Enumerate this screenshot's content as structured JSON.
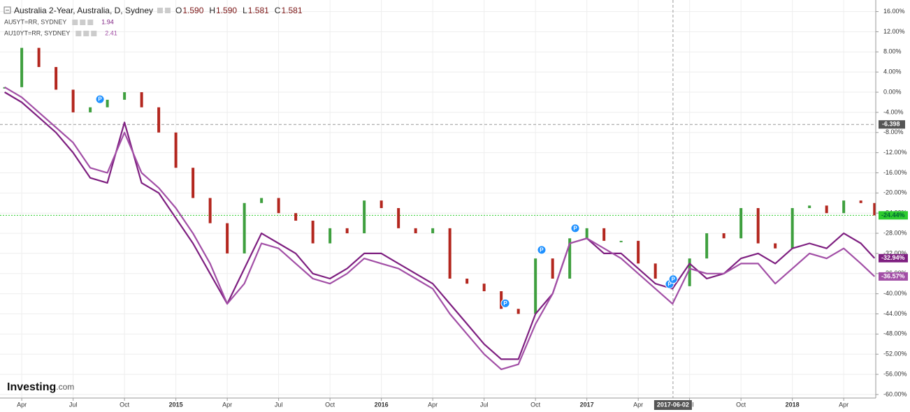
{
  "header": {
    "title": "Australia 2-Year, Australia, D, Sydney",
    "ohlc": [
      {
        "key": "O",
        "value": "1.590"
      },
      {
        "key": "H",
        "value": "1.590"
      },
      {
        "key": "L",
        "value": "1.581"
      },
      {
        "key": "C",
        "value": "1.581"
      }
    ]
  },
  "logo": {
    "main": "Investing",
    "suffix": ".com"
  },
  "chart_data": {
    "type": "candle-compare",
    "x": [
      2,
      3,
      4,
      5,
      6,
      7,
      8,
      9,
      10,
      11,
      12,
      13,
      14,
      15,
      16,
      17,
      18,
      19,
      20,
      21,
      22,
      23,
      24,
      25,
      26,
      27,
      28,
      29,
      30,
      31,
      32,
      33,
      34,
      35,
      36,
      37,
      38,
      39,
      40,
      41,
      42,
      43,
      44,
      45,
      46,
      47,
      48,
      49,
      50,
      51,
      52,
      52.8
    ],
    "xlim": [
      1.73,
      52.87
    ],
    "xticks": [
      {
        "value": 3,
        "label": "Apr"
      },
      {
        "value": 6,
        "label": "Jul"
      },
      {
        "value": 9,
        "label": "Oct"
      },
      {
        "value": 12,
        "label": "2015"
      },
      {
        "value": 15,
        "label": "Apr"
      },
      {
        "value": 18,
        "label": "Jul"
      },
      {
        "value": 21,
        "label": "Oct"
      },
      {
        "value": 24,
        "label": "2016"
      },
      {
        "value": 27,
        "label": "Apr"
      },
      {
        "value": 30,
        "label": "Jul"
      },
      {
        "value": 33,
        "label": "Oct"
      },
      {
        "value": 36,
        "label": "2017"
      },
      {
        "value": 39,
        "label": "Apr"
      },
      {
        "value": 42,
        "label": "Jul"
      },
      {
        "value": 45,
        "label": "Oct"
      },
      {
        "value": 48,
        "label": "2018"
      },
      {
        "value": 51,
        "label": "Apr"
      }
    ],
    "ylim": [
      -60.7,
      18.3
    ],
    "yticks": [
      {
        "value": 16,
        "label": "16.00%"
      },
      {
        "value": 12,
        "label": "12.00%"
      },
      {
        "value": 8,
        "label": "8.00%"
      },
      {
        "value": 4,
        "label": "4.00%"
      },
      {
        "value": 0,
        "label": "0.00%"
      },
      {
        "value": -4,
        "label": "-4.00%"
      },
      {
        "value": -8,
        "label": "-8.00%"
      },
      {
        "value": -12,
        "label": "-12.00%"
      },
      {
        "value": -16,
        "label": "-16.00%"
      },
      {
        "value": -20,
        "label": "-20.00%"
      },
      {
        "value": -24,
        "label": "-24.00%"
      },
      {
        "value": -28,
        "label": "-28.00%"
      },
      {
        "value": -32,
        "label": "-32.00%"
      },
      {
        "value": -36,
        "label": "-36.00%"
      },
      {
        "value": -40,
        "label": "-40.00%"
      },
      {
        "value": -44,
        "label": "-44.00%"
      },
      {
        "value": -48,
        "label": "-48.00%"
      },
      {
        "value": -52,
        "label": "-52.00%"
      },
      {
        "value": -56,
        "label": "-56.00%"
      },
      {
        "value": -60,
        "label": "-60.00%"
      }
    ],
    "grid": true,
    "series": [
      {
        "name": "Australia 2-Year",
        "style": "candle",
        "up_color": "#3e9f3e",
        "down_color": "#b3261e",
        "color": "#2ecc2e",
        "last_label": "-24.44%",
        "values": [
          1.0,
          8.8,
          5.0,
          0.5,
          -4.0,
          -3.0,
          -1.5,
          0.0,
          -3.0,
          -8.0,
          -15.0,
          -21.0,
          -26.0,
          -32.0,
          -22.0,
          -21.0,
          -24.0,
          -25.5,
          -30.0,
          -27.0,
          -28.0,
          -21.5,
          -23.0,
          -27.0,
          -28.0,
          -27.0,
          -37.0,
          -38.0,
          -39.5,
          -43.0,
          -44.0,
          -33.0,
          -37.0,
          -29.0,
          -27.0,
          -29.5,
          -29.5,
          -34.0,
          -37.0,
          -38.5,
          -33.0,
          -28.0,
          -29.0,
          -23.0,
          -30.0,
          -31.0,
          -23.0,
          -22.5,
          -24.0,
          -21.5,
          -22.0,
          -24.44
        ]
      },
      {
        "name": "AU5YT=RR, SYDNEY",
        "style": "line",
        "color": "#7e1f80",
        "legend_value": "1.94",
        "last_label": "-32.94%",
        "values": [
          0,
          -2,
          -5,
          -8,
          -12,
          -17,
          -18,
          -6,
          -18,
          -20,
          -25,
          -30,
          -36,
          -42,
          -35,
          -28,
          -30,
          -32,
          -36,
          -37,
          -35,
          -32,
          -32,
          -34,
          -36,
          -38,
          -42,
          -46,
          -50,
          -53,
          -53,
          -44,
          -40,
          -30,
          -29,
          -32,
          -32,
          -35,
          -38,
          -39,
          -34,
          -37,
          -36,
          -33,
          -32,
          -34,
          -31,
          -30,
          -31,
          -28,
          -30,
          -32.94
        ]
      },
      {
        "name": "AU10YT=RR, SYDNEY",
        "style": "line",
        "color": "#a24fa6",
        "legend_value": "2.41",
        "last_label": "-36.57%",
        "values": [
          1,
          -1,
          -4,
          -7,
          -10,
          -15,
          -16,
          -8,
          -16,
          -19,
          -23,
          -28,
          -34,
          -42,
          -38,
          -30,
          -31,
          -34,
          -37,
          -38,
          -36,
          -33,
          -34,
          -35,
          -37,
          -39,
          -44,
          -48,
          -52,
          -55,
          -54,
          -46,
          -40,
          -30,
          -29,
          -31,
          -33,
          -36,
          -39,
          -42,
          -35,
          -36,
          -36,
          -34,
          -34,
          -38,
          -35,
          -32,
          -33,
          -31,
          -34,
          -36.57
        ]
      }
    ],
    "markers": [
      {
        "x": 7.57,
        "y": -1.4,
        "label": "P"
      },
      {
        "x": 31.24,
        "y": -41.9,
        "label": "P"
      },
      {
        "x": 33.36,
        "y": -31.3,
        "label": "P"
      },
      {
        "x": 35.32,
        "y": -27.0,
        "label": "P"
      },
      {
        "x": 40.83,
        "y": -38.1,
        "label": "P"
      },
      {
        "x": 41.04,
        "y": -37.1,
        "label": "P"
      }
    ],
    "crosshair": {
      "x": 41.03,
      "x_label": "2017-06-02",
      "y": -6.398
    }
  }
}
